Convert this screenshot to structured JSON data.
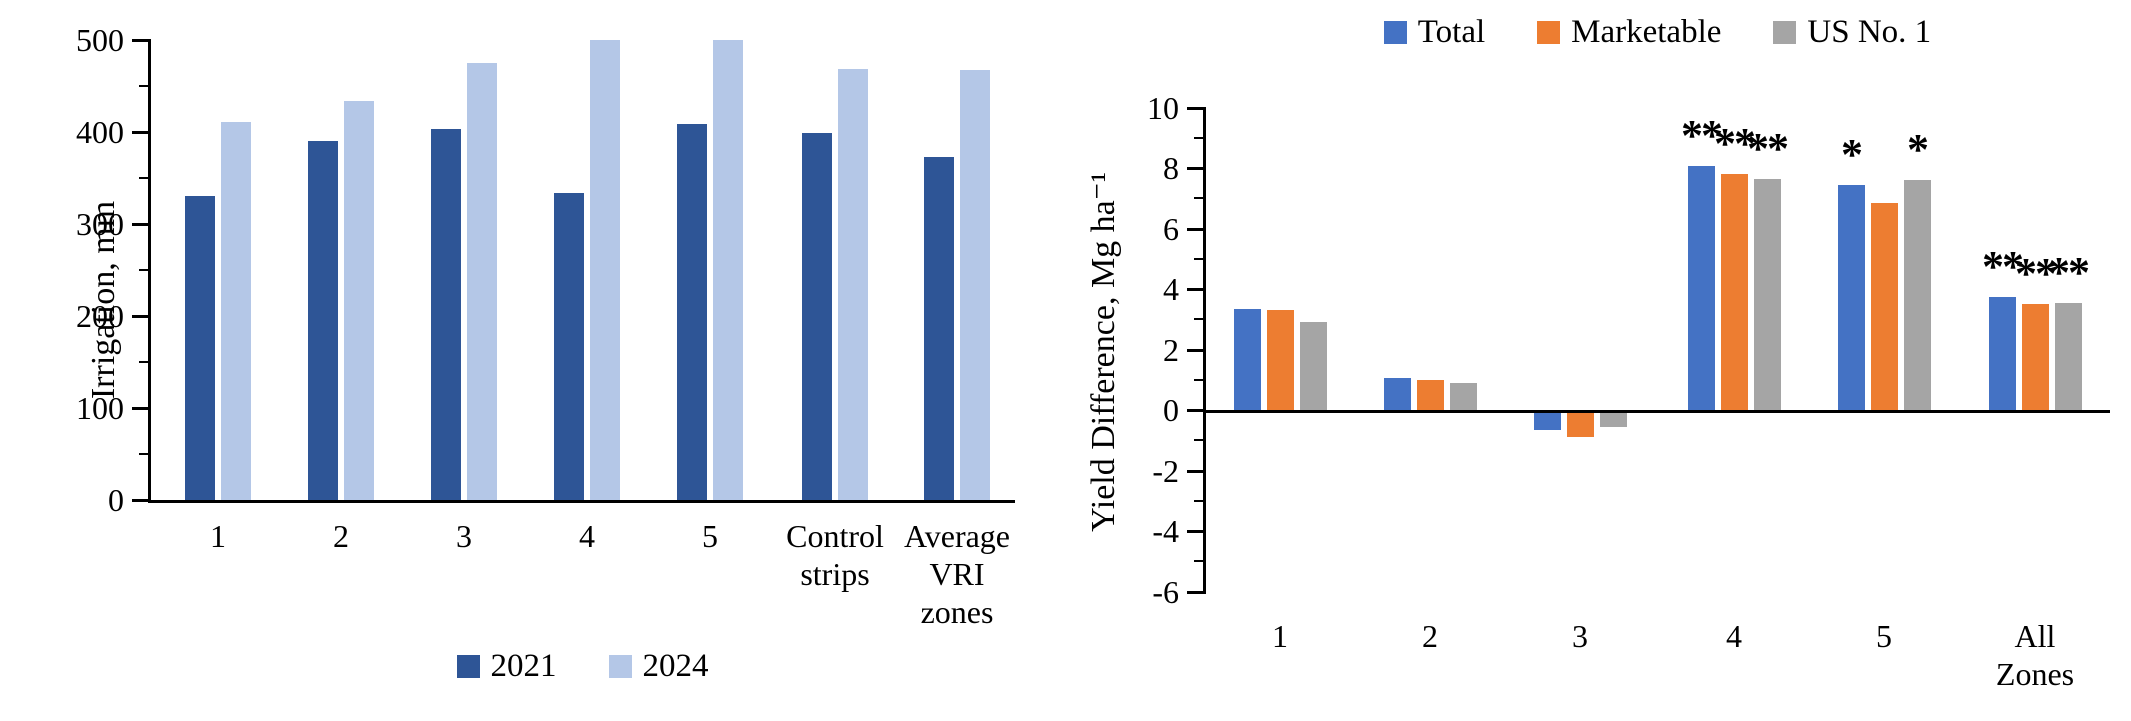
{
  "chart_data": [
    {
      "id": "irrigation-by-zone",
      "type": "bar",
      "title": "",
      "xlabel": "",
      "ylabel": "Irrigation, mm",
      "categories": [
        "1",
        "2",
        "3",
        "4",
        "5",
        "Control\nstrips",
        "Average\nVRI\nzones"
      ],
      "series": [
        {
          "name": "2021",
          "color": "#2E5596",
          "values": [
            330,
            390,
            403,
            334,
            409,
            399,
            373
          ]
        },
        {
          "name": "2024",
          "color": "#B4C7E7",
          "values": [
            411,
            434,
            475,
            500,
            500,
            469,
            467
          ]
        }
      ],
      "ylim": [
        0,
        500
      ],
      "ytick_step": 100,
      "yminor_step": 50,
      "grid": "off",
      "legend_position": "bottom"
    },
    {
      "id": "yield-difference-by-zone",
      "type": "bar",
      "title": "",
      "xlabel": "",
      "ylabel": "Yield Difference, Mg ha⁻¹",
      "categories": [
        "1",
        "2",
        "3",
        "4",
        "5",
        "All\nZones"
      ],
      "series": [
        {
          "name": "Total",
          "color": "#4472C4",
          "values": [
            3.35,
            1.05,
            -0.55,
            8.05,
            7.45,
            3.75
          ]
        },
        {
          "name": "Marketable",
          "color": "#ED7D31",
          "values": [
            3.3,
            1.0,
            -0.8,
            7.8,
            6.85,
            3.5
          ]
        },
        {
          "name": "US No. 1",
          "color": "#A5A5A5",
          "values": [
            2.9,
            0.9,
            -0.45,
            7.65,
            7.6,
            3.55
          ]
        }
      ],
      "annotations": [
        [
          "",
          "",
          ""
        ],
        [
          "",
          "",
          ""
        ],
        [
          "",
          "",
          ""
        ],
        [
          "**",
          "**",
          "**"
        ],
        [
          "*",
          "",
          "*"
        ],
        [
          "**",
          "**",
          "**"
        ]
      ],
      "ylim": [
        -6,
        10
      ],
      "ytick_step": 2,
      "yminor_step": 1,
      "grid": "off",
      "legend_position": "top"
    }
  ]
}
